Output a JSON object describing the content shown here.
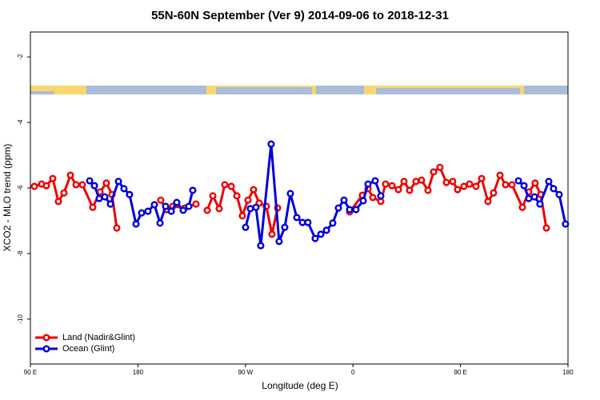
{
  "chart_data": {
    "type": "line",
    "title": "55N-60N September (Ver 9)   2014-09-06 to 2018-12-31",
    "x_label": "Longitude (deg E)",
    "y_label": "XCO2 - MLO trend (ppm)",
    "xlim": [
      90,
      540
    ],
    "ylim": [
      -11.37,
      -1.24
    ],
    "xticks": [
      {
        "value": 90,
        "label": "90 E"
      },
      180,
      {
        "value": 270,
        "label": "90 W"
      },
      {
        "value": 360,
        "label": "0"
      },
      {
        "value": 450,
        "label": "90 E"
      },
      {
        "value": 540,
        "label": "180"
      }
    ],
    "yticks": [
      -10,
      -8,
      -6,
      -4,
      -2
    ],
    "legend": "bottom-left",
    "series": [
      {
        "name": "Land (Nadir&Glint)",
        "color": "#ee0000",
        "x": [
          93.3,
          99.4,
          103.4,
          108.7,
          113.4,
          118.1,
          123.5,
          128.2,
          133.5,
          142.2,
          148.3,
          153.6,
          158.3,
          162.3,
          null,
          199.1,
          203.8,
          209.2,
          219.2,
          228.6,
          null,
          238.0,
          242.7,
          248.0,
          252.7,
          258.1,
          262.8,
          267.4,
          272.1,
          276.8,
          281.5,
          287.5,
          292.2,
          296.9,
          null,
          357.2,
          367.9,
          372.6,
          376.6,
          383.3,
          387.3,
          392.7,
          398.0,
          402.7,
          407.4,
          412.7,
          417.4,
          422.8,
          427.5,
          432.8,
          438.2,
          443.5,
          447.6,
          452.9,
          457.6,
          463.0,
          467.7,
          473.0,
          477.7,
          483.1,
          487.7,
          493.1,
          501.8,
          507.2,
          512.5,
          517.2,
          521.9
        ],
        "values": [
          -5.95,
          -5.88,
          -5.93,
          -5.71,
          -6.41,
          -6.15,
          -5.61,
          -5.9,
          -5.9,
          -6.59,
          -6.12,
          -5.85,
          -6.2,
          -7.22,
          null,
          -6.37,
          -6.66,
          -6.56,
          -6.61,
          -6.49,
          null,
          -6.68,
          -6.24,
          -6.63,
          -5.9,
          -5.95,
          -6.24,
          -6.85,
          -6.37,
          -6.05,
          -6.46,
          -6.56,
          -7.41,
          -6.61,
          null,
          -6.73,
          -6.22,
          -6.02,
          -6.29,
          -6.41,
          -5.88,
          -5.93,
          -6.05,
          -5.8,
          -6.07,
          -5.8,
          -5.76,
          -6.07,
          -5.51,
          -5.37,
          -5.83,
          -5.8,
          -6.05,
          -5.95,
          -5.88,
          -5.95,
          -5.71,
          -6.41,
          -6.15,
          -5.61,
          -5.9,
          -5.9,
          -6.59,
          -6.12,
          -5.85,
          -6.2,
          -7.22
        ]
      },
      {
        "name": "Ocean (Glint)",
        "color": "#0000dd",
        "x": [
          139.6,
          143.6,
          147.6,
          152.3,
          157.0,
          163.7,
          168.3,
          173.0,
          178.4,
          183.1,
          188.4,
          193.8,
          198.5,
          203.2,
          207.9,
          212.5,
          217.9,
          222.6,
          225.9,
          null,
          270.1,
          274.1,
          278.8,
          282.8,
          291.5,
          298.2,
          302.9,
          307.6,
          313.0,
          317.7,
          322.3,
          328.4,
          333.1,
          337.8,
          343.1,
          347.8,
          352.5,
          357.2,
          362.5,
          368.6,
          372.6,
          378.6,
          383.3,
          null,
          498.5,
          503.2,
          507.2,
          511.9,
          516.5,
          523.9,
          527.9,
          532.6,
          537.9
        ],
        "values": [
          -5.78,
          -5.93,
          -6.32,
          -6.27,
          -6.49,
          -5.8,
          -6.02,
          -6.2,
          -7.1,
          -6.76,
          -6.71,
          -6.51,
          -7.07,
          -6.56,
          -6.71,
          -6.44,
          -6.68,
          -6.56,
          -6.07,
          null,
          -7.2,
          -6.63,
          -6.59,
          -7.76,
          -4.66,
          -7.63,
          -7.2,
          -6.17,
          -6.9,
          -7.05,
          -7.05,
          -7.54,
          -7.41,
          -7.29,
          -7.07,
          -6.61,
          -6.37,
          -6.66,
          -6.66,
          -6.39,
          -5.88,
          -5.78,
          -6.24,
          null,
          -5.78,
          -5.93,
          -6.32,
          -6.27,
          -6.49,
          -5.8,
          -6.02,
          -6.2,
          -7.1
        ]
      }
    ]
  }
}
